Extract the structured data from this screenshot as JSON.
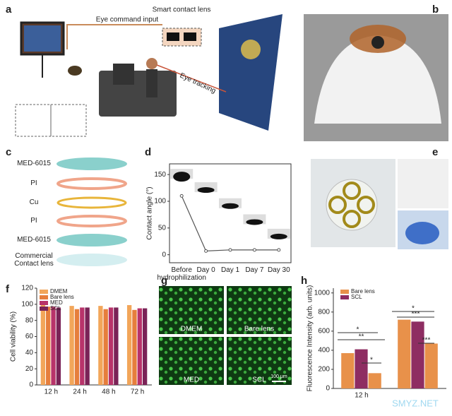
{
  "panel_labels": [
    "a",
    "b",
    "c",
    "d",
    "e",
    "f",
    "g",
    "h"
  ],
  "panel_a": {
    "eye_command_input": "Eye command input",
    "smart_contact_lens": "Smart contact lens",
    "eye_tracking": "Eye tracking"
  },
  "panel_c": {
    "layers": [
      "MED-6015",
      "PI",
      "Cu",
      "PI",
      "MED-6015",
      "Commercial Contact lens"
    ]
  },
  "panel_g": {
    "labels": [
      "DMEM",
      "Bare lens",
      "MED",
      "SCL"
    ],
    "scale_bar": "100 μm"
  },
  "watermark": "SMYZ.NET",
  "chart_data": [
    {
      "type": "line",
      "y_label": "Contact angle (°)",
      "categories": [
        "Before hydrophilization",
        "Day 0",
        "Day 1",
        "Day 7",
        "Day 30"
      ],
      "values": [
        110,
        7,
        9,
        9,
        9
      ],
      "color": "#555555",
      "ylim": [
        -15,
        170
      ],
      "yticks": [
        0,
        50,
        100,
        150
      ]
    },
    {
      "type": "bar",
      "y_label": "Cell viability (%)",
      "categories": [
        "12 h",
        "24 h",
        "48 h",
        "72 h"
      ],
      "series": [
        {
          "name": "DMEM",
          "color": "#f2a65a",
          "values": [
            100,
            98,
            98,
            99
          ]
        },
        {
          "name": "Bare lens",
          "color": "#e67e3c",
          "values": [
            97,
            94,
            94,
            93
          ]
        },
        {
          "name": "MED",
          "color": "#b8336a",
          "values": [
            97,
            96,
            96,
            95
          ]
        },
        {
          "name": "SCL",
          "color": "#7a2357",
          "values": [
            96,
            96,
            96,
            95
          ]
        }
      ],
      "ylim": [
        0,
        120
      ],
      "yticks": [
        0,
        20,
        40,
        60,
        80,
        100,
        120
      ],
      "legend": "upper left"
    },
    {
      "type": "bar",
      "y_label": "Fluorescence Intensity (arb. units)",
      "categories": [
        "12 h",
        null
      ],
      "series": [
        {
          "name": "Bare lens",
          "color": "#e8914a",
          "values": [
            370,
            720
          ]
        },
        {
          "name": "SCL",
          "color": "#8e2d62",
          "values": [
            410,
            700
          ]
        },
        {
          "color": "#e8914a",
          "values": [
            160,
            470
          ]
        }
      ],
      "ylim": [
        0,
        1050
      ],
      "yticks": [
        0,
        200,
        400,
        600,
        800,
        1000
      ],
      "legend": "upper left",
      "annotations": [
        "*",
        "**",
        "*",
        "*",
        "***",
        "***"
      ]
    }
  ]
}
